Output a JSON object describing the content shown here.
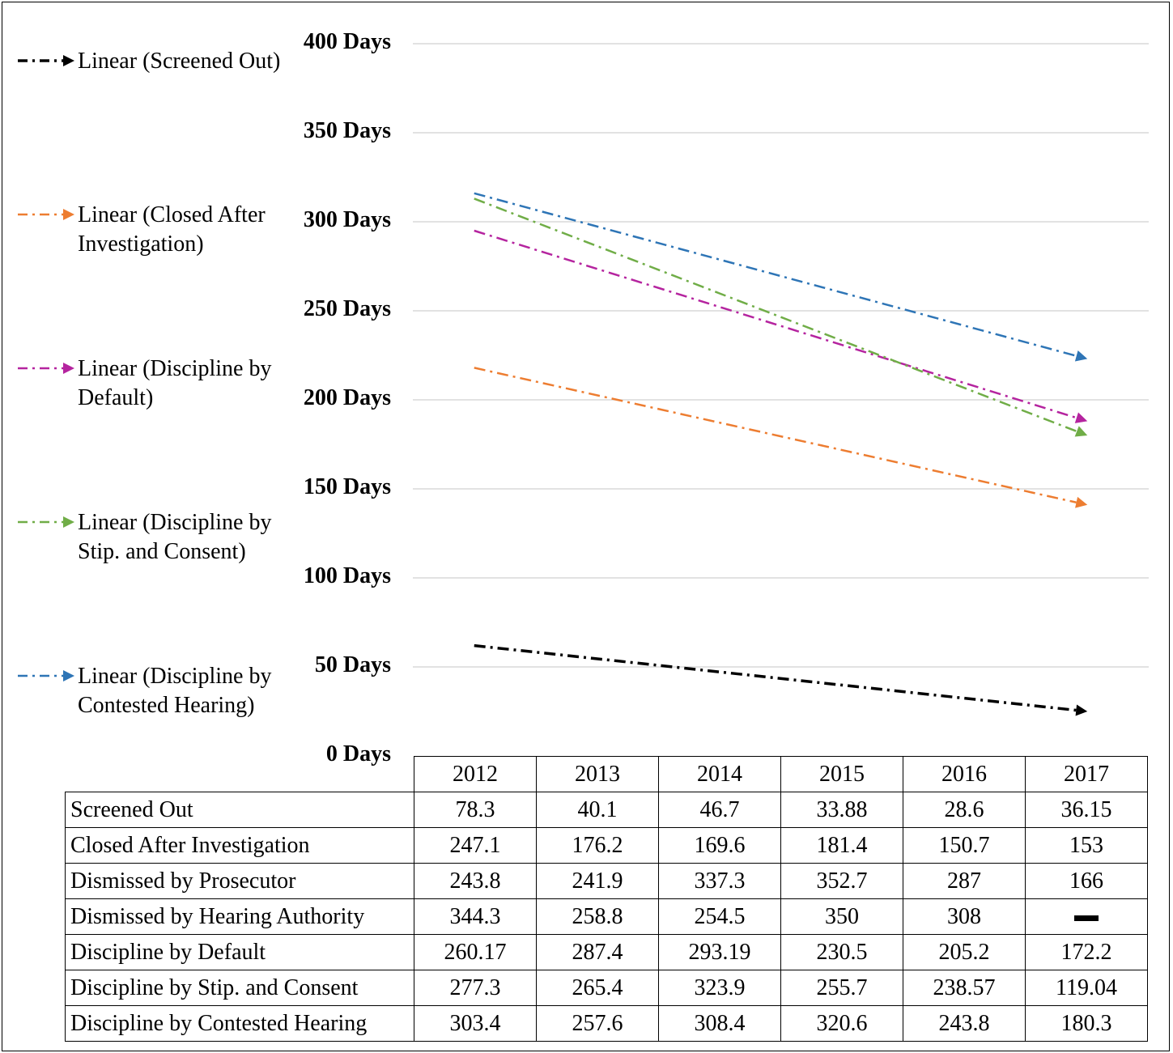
{
  "chart_data": {
    "type": "line",
    "y_axis": {
      "min": 0,
      "max": 400,
      "step": 50,
      "tick_labels": [
        "0 Days",
        "50 Days",
        "100 Days",
        "150 Days",
        "200 Days",
        "250 Days",
        "300 Days",
        "350 Days",
        "400 Days"
      ],
      "grid": true
    },
    "x_axis": {
      "categories": [
        "2012",
        "2013",
        "2014",
        "2015",
        "2016",
        "2017"
      ]
    },
    "legend": {
      "placement": "left",
      "items": [
        {
          "label": "Linear (Screened Out)",
          "color": "#000000"
        },
        {
          "label": "Linear (Closed After Investigation)",
          "color": "#ed7d31"
        },
        {
          "label": "Linear (Discipline by Default)",
          "color": "#b5249f"
        },
        {
          "label": "Linear (Discipline by Stip. and Consent)",
          "color": "#70ad47"
        },
        {
          "label": "Linear (Discipline by Contested Hearing)",
          "color": "#2e75b6"
        }
      ]
    },
    "trendlines": [
      {
        "name": "Linear (Screened Out)",
        "color": "#000000",
        "start": [
          2012,
          62
        ],
        "end": [
          2017,
          25
        ]
      },
      {
        "name": "Linear (Closed After Investigation)",
        "color": "#ed7d31",
        "start": [
          2012,
          218
        ],
        "end": [
          2017,
          141
        ]
      },
      {
        "name": "Linear (Discipline by Default)",
        "color": "#b5249f",
        "start": [
          2012,
          295
        ],
        "end": [
          2017,
          188
        ]
      },
      {
        "name": "Linear (Discipline by Stip. and Consent)",
        "color": "#70ad47",
        "start": [
          2012,
          313
        ],
        "end": [
          2017,
          180
        ]
      },
      {
        "name": "Linear (Discipline by Contested Hearing)",
        "color": "#2e75b6",
        "start": [
          2012,
          316
        ],
        "end": [
          2017,
          223
        ]
      }
    ],
    "table": {
      "years": [
        "2012",
        "2013",
        "2014",
        "2015",
        "2016",
        "2017"
      ],
      "rows": [
        {
          "label": "Screened Out",
          "values": [
            "78.3",
            "40.1",
            "46.7",
            "33.88",
            "28.6",
            "36.15"
          ]
        },
        {
          "label": "Closed After Investigation",
          "values": [
            "247.1",
            "176.2",
            "169.6",
            "181.4",
            "150.7",
            "153"
          ]
        },
        {
          "label": "Dismissed by Prosecutor",
          "values": [
            "243.8",
            "241.9",
            "337.3",
            "352.7",
            "287",
            "166"
          ]
        },
        {
          "label": "Dismissed by Hearing Authority",
          "values": [
            "344.3",
            "258.8",
            "254.5",
            "350",
            "308",
            null
          ]
        },
        {
          "label": "Discipline by Default",
          "values": [
            "260.17",
            "287.4",
            "293.19",
            "230.5",
            "205.2",
            "172.2"
          ]
        },
        {
          "label": "Discipline by Stip. and Consent",
          "values": [
            "277.3",
            "265.4",
            "323.9",
            "255.7",
            "238.57",
            "119.04"
          ]
        },
        {
          "label": "Discipline by Contested Hearing",
          "values": [
            "303.4",
            "257.6",
            "308.4",
            "320.6",
            "243.8",
            "180.3"
          ]
        }
      ]
    }
  }
}
